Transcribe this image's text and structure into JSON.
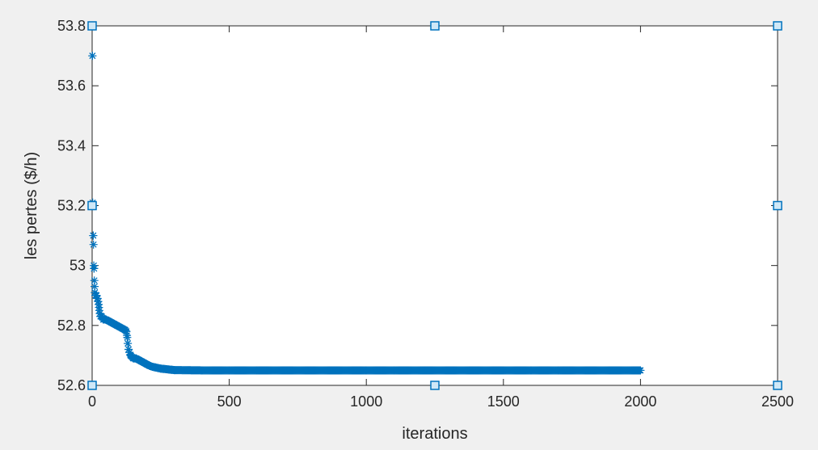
{
  "chart_data": {
    "type": "scatter",
    "title": "",
    "xlabel": "iterations",
    "ylabel": "les pertes ($/h)",
    "xlim": [
      0,
      2500
    ],
    "ylim": [
      52.6,
      53.8
    ],
    "x_ticks": [
      0,
      500,
      1000,
      1500,
      2000,
      2500
    ],
    "y_ticks": [
      52.6,
      52.8,
      53.0,
      53.2,
      53.4,
      53.6,
      53.8
    ],
    "x_tick_labels": [
      "0",
      "500",
      "1000",
      "1500",
      "2000",
      "2500"
    ],
    "y_tick_labels": [
      "52.6",
      "52.8",
      "53",
      "53.2",
      "53.4",
      "53.6",
      "53.8"
    ],
    "grid": false,
    "legend": "none",
    "colors": {
      "series": "#0072bd",
      "axes_bg": "#ffffff",
      "figure_bg": "#f0f0f0",
      "axis": "#262626"
    },
    "series": [
      {
        "marker": "asterisk",
        "iterations_total": 2000,
        "points": [
          [
            1,
            53.7
          ],
          [
            2,
            53.21
          ],
          [
            3,
            53.2
          ],
          [
            4,
            53.1
          ],
          [
            5,
            53.07
          ],
          [
            6,
            53.0
          ],
          [
            7,
            52.99
          ],
          [
            8,
            52.95
          ],
          [
            9,
            52.93
          ],
          [
            10,
            52.91
          ],
          [
            12,
            52.9
          ],
          [
            14,
            52.9
          ],
          [
            16,
            52.9
          ],
          [
            18,
            52.89
          ],
          [
            20,
            52.89
          ],
          [
            22,
            52.88
          ],
          [
            24,
            52.87
          ],
          [
            26,
            52.85
          ],
          [
            28,
            52.84
          ],
          [
            30,
            52.83
          ],
          [
            35,
            52.83
          ],
          [
            40,
            52.82
          ],
          [
            50,
            52.82
          ],
          [
            60,
            52.815
          ],
          [
            70,
            52.81
          ],
          [
            80,
            52.805
          ],
          [
            90,
            52.8
          ],
          [
            100,
            52.795
          ],
          [
            110,
            52.79
          ],
          [
            120,
            52.785
          ],
          [
            125,
            52.78
          ],
          [
            128,
            52.76
          ],
          [
            130,
            52.74
          ],
          [
            133,
            52.72
          ],
          [
            136,
            52.71
          ],
          [
            140,
            52.7
          ],
          [
            150,
            52.69
          ],
          [
            160,
            52.69
          ],
          [
            170,
            52.685
          ],
          [
            180,
            52.68
          ],
          [
            190,
            52.675
          ],
          [
            200,
            52.67
          ],
          [
            210,
            52.665
          ],
          [
            220,
            52.662
          ],
          [
            230,
            52.66
          ],
          [
            240,
            52.658
          ],
          [
            250,
            52.656
          ],
          [
            260,
            52.655
          ],
          [
            270,
            52.654
          ],
          [
            280,
            52.653
          ],
          [
            290,
            52.652
          ],
          [
            300,
            52.651
          ],
          [
            400,
            52.65
          ],
          [
            500,
            52.65
          ],
          [
            600,
            52.65
          ],
          [
            700,
            52.65
          ],
          [
            800,
            52.65
          ],
          [
            900,
            52.65
          ],
          [
            1000,
            52.65
          ],
          [
            1100,
            52.65
          ],
          [
            1200,
            52.65
          ],
          [
            1300,
            52.65
          ],
          [
            1400,
            52.65
          ],
          [
            1500,
            52.65
          ],
          [
            1600,
            52.65
          ],
          [
            1700,
            52.65
          ],
          [
            1800,
            52.65
          ],
          [
            1900,
            52.65
          ],
          [
            2000,
            52.65
          ]
        ]
      }
    ],
    "edge_square_markers": [
      [
        0,
        53.8
      ],
      [
        1250,
        53.8
      ],
      [
        2500,
        53.8
      ],
      [
        0,
        53.2
      ],
      [
        2500,
        53.2
      ],
      [
        0,
        52.6
      ],
      [
        1250,
        52.6
      ],
      [
        2500,
        52.6
      ]
    ]
  }
}
